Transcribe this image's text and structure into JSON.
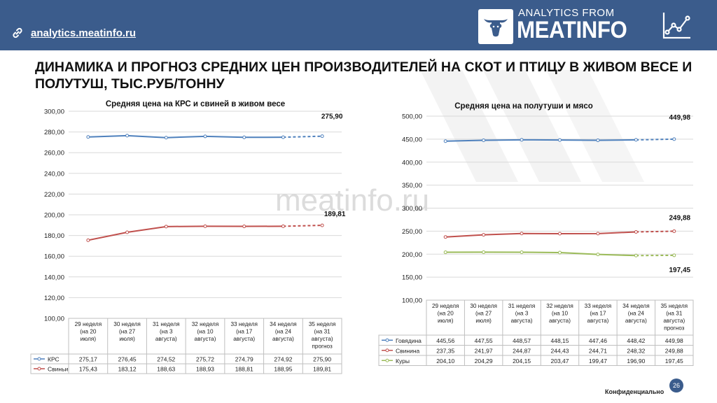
{
  "header": {
    "site_link": "analytics.meatinfo.ru",
    "logo_line1": "ANALYTICS FROM",
    "logo_line2": "MEATINFO",
    "link_icon": "link-icon",
    "logo_icon": "bull-head-icon",
    "trend_icon": "trend-chart-icon",
    "bg_color": "#3b5c8c"
  },
  "page_title": "ДИНАМИКА И ПРОГНОЗ СРЕДНИХ ЦЕН ПРОИЗВОДИТЕЛЕЙ НА СКОТ И ПТИЦУ В ЖИВОМ ВЕСЕ И ПОЛУТУШ, ТЫС.РУБ/ТОННУ",
  "watermark": "meatinfo.ru",
  "footer": {
    "confidential": "Конфиденциально",
    "page_number": "26"
  },
  "chart_data": [
    {
      "type": "line",
      "title": "Средняя цена на КРС и свиней в живом весе",
      "categories": [
        "29 неделя (на 20 июля)",
        "30 неделя (на 27 июля)",
        "31 неделя (на 3 августа)",
        "32 неделя (на 10 августа)",
        "33 неделя (на 17 августа)",
        "34 неделя (на 24 августа)",
        "35 неделя (на 31 августа) прогноз"
      ],
      "category_lines": [
        [
          "29 неделя",
          "(на 20",
          "июля)"
        ],
        [
          "30 неделя",
          "(на 27",
          "июля)"
        ],
        [
          "31 неделя",
          "(на 3",
          "августа)"
        ],
        [
          "32 неделя",
          "(на 10",
          "августа)"
        ],
        [
          "33 неделя",
          "(на 17",
          "августа)"
        ],
        [
          "34 неделя",
          "(на 24",
          "августа)"
        ],
        [
          "35 неделя",
          "(на 31",
          "августа)",
          "прогноз"
        ]
      ],
      "ylim": [
        100,
        300
      ],
      "yticks": [
        "100,00",
        "120,00",
        "140,00",
        "160,00",
        "180,00",
        "200,00",
        "220,00",
        "240,00",
        "260,00",
        "280,00",
        "300,00"
      ],
      "forecast_from_index": 5,
      "series": [
        {
          "name": "КРС",
          "color": "#4f81bd",
          "values": [
            275.17,
            276.45,
            274.52,
            275.72,
            274.79,
            274.92,
            275.9
          ],
          "labels": [
            "275,17",
            "276,45",
            "274,52",
            "275,72",
            "274,79",
            "274,92",
            "275,90"
          ],
          "end_label": "275,90"
        },
        {
          "name": "Свиньи",
          "color": "#c0504d",
          "values": [
            175.43,
            183.12,
            188.63,
            188.93,
            188.81,
            188.95,
            189.81
          ],
          "labels": [
            "175,43",
            "183,12",
            "188,63",
            "188,93",
            "188,81",
            "188,95",
            "189,81"
          ],
          "end_label": "189,81"
        }
      ]
    },
    {
      "type": "line",
      "title": "Средняя цена на полутуши и мясо",
      "categories": [
        "29 неделя (на 20 июля)",
        "30 неделя (на 27 июля)",
        "31 неделя (на 3 августа)",
        "32 неделя (на 10 августа)",
        "33 неделя (на 17 августа)",
        "34 неделя (на 24 августа)",
        "35 неделя (на 31 августа) прогноз"
      ],
      "category_lines": [
        [
          "29 неделя",
          "(на 20",
          "июля)"
        ],
        [
          "30 неделя",
          "(на 27",
          "июля)"
        ],
        [
          "31 неделя",
          "(на 3",
          "августа)"
        ],
        [
          "32 неделя",
          "(на 10",
          "августа)"
        ],
        [
          "33 неделя",
          "(на 17",
          "августа)"
        ],
        [
          "34 неделя",
          "(на 24",
          "августа)"
        ],
        [
          "35 неделя",
          "(на 31",
          "августа)",
          "прогноз"
        ]
      ],
      "ylim": [
        100,
        500
      ],
      "yticks": [
        "100,00",
        "150,00",
        "200,00",
        "250,00",
        "300,00",
        "350,00",
        "400,00",
        "450,00",
        "500,00"
      ],
      "forecast_from_index": 5,
      "series": [
        {
          "name": "Говядина",
          "color": "#4f81bd",
          "values": [
            445.56,
            447.55,
            448.57,
            448.15,
            447.46,
            448.42,
            449.98
          ],
          "labels": [
            "445,56",
            "447,55",
            "448,57",
            "448,15",
            "447,46",
            "448,42",
            "449,98"
          ],
          "end_label": "449,98"
        },
        {
          "name": "Свинина",
          "color": "#c0504d",
          "values": [
            237.35,
            241.97,
            244.87,
            244.43,
            244.71,
            248.32,
            249.88
          ],
          "labels": [
            "237,35",
            "241,97",
            "244,87",
            "244,43",
            "244,71",
            "248,32",
            "249,88"
          ],
          "end_label": "249,88"
        },
        {
          "name": "Куры",
          "color": "#9bbb59",
          "values": [
            204.1,
            204.29,
            204.15,
            203.47,
            199.47,
            196.9,
            197.45
          ],
          "labels": [
            "204,10",
            "204,29",
            "204,15",
            "203,47",
            "199,47",
            "196,90",
            "197,45"
          ],
          "end_label": "197,45"
        }
      ]
    }
  ]
}
